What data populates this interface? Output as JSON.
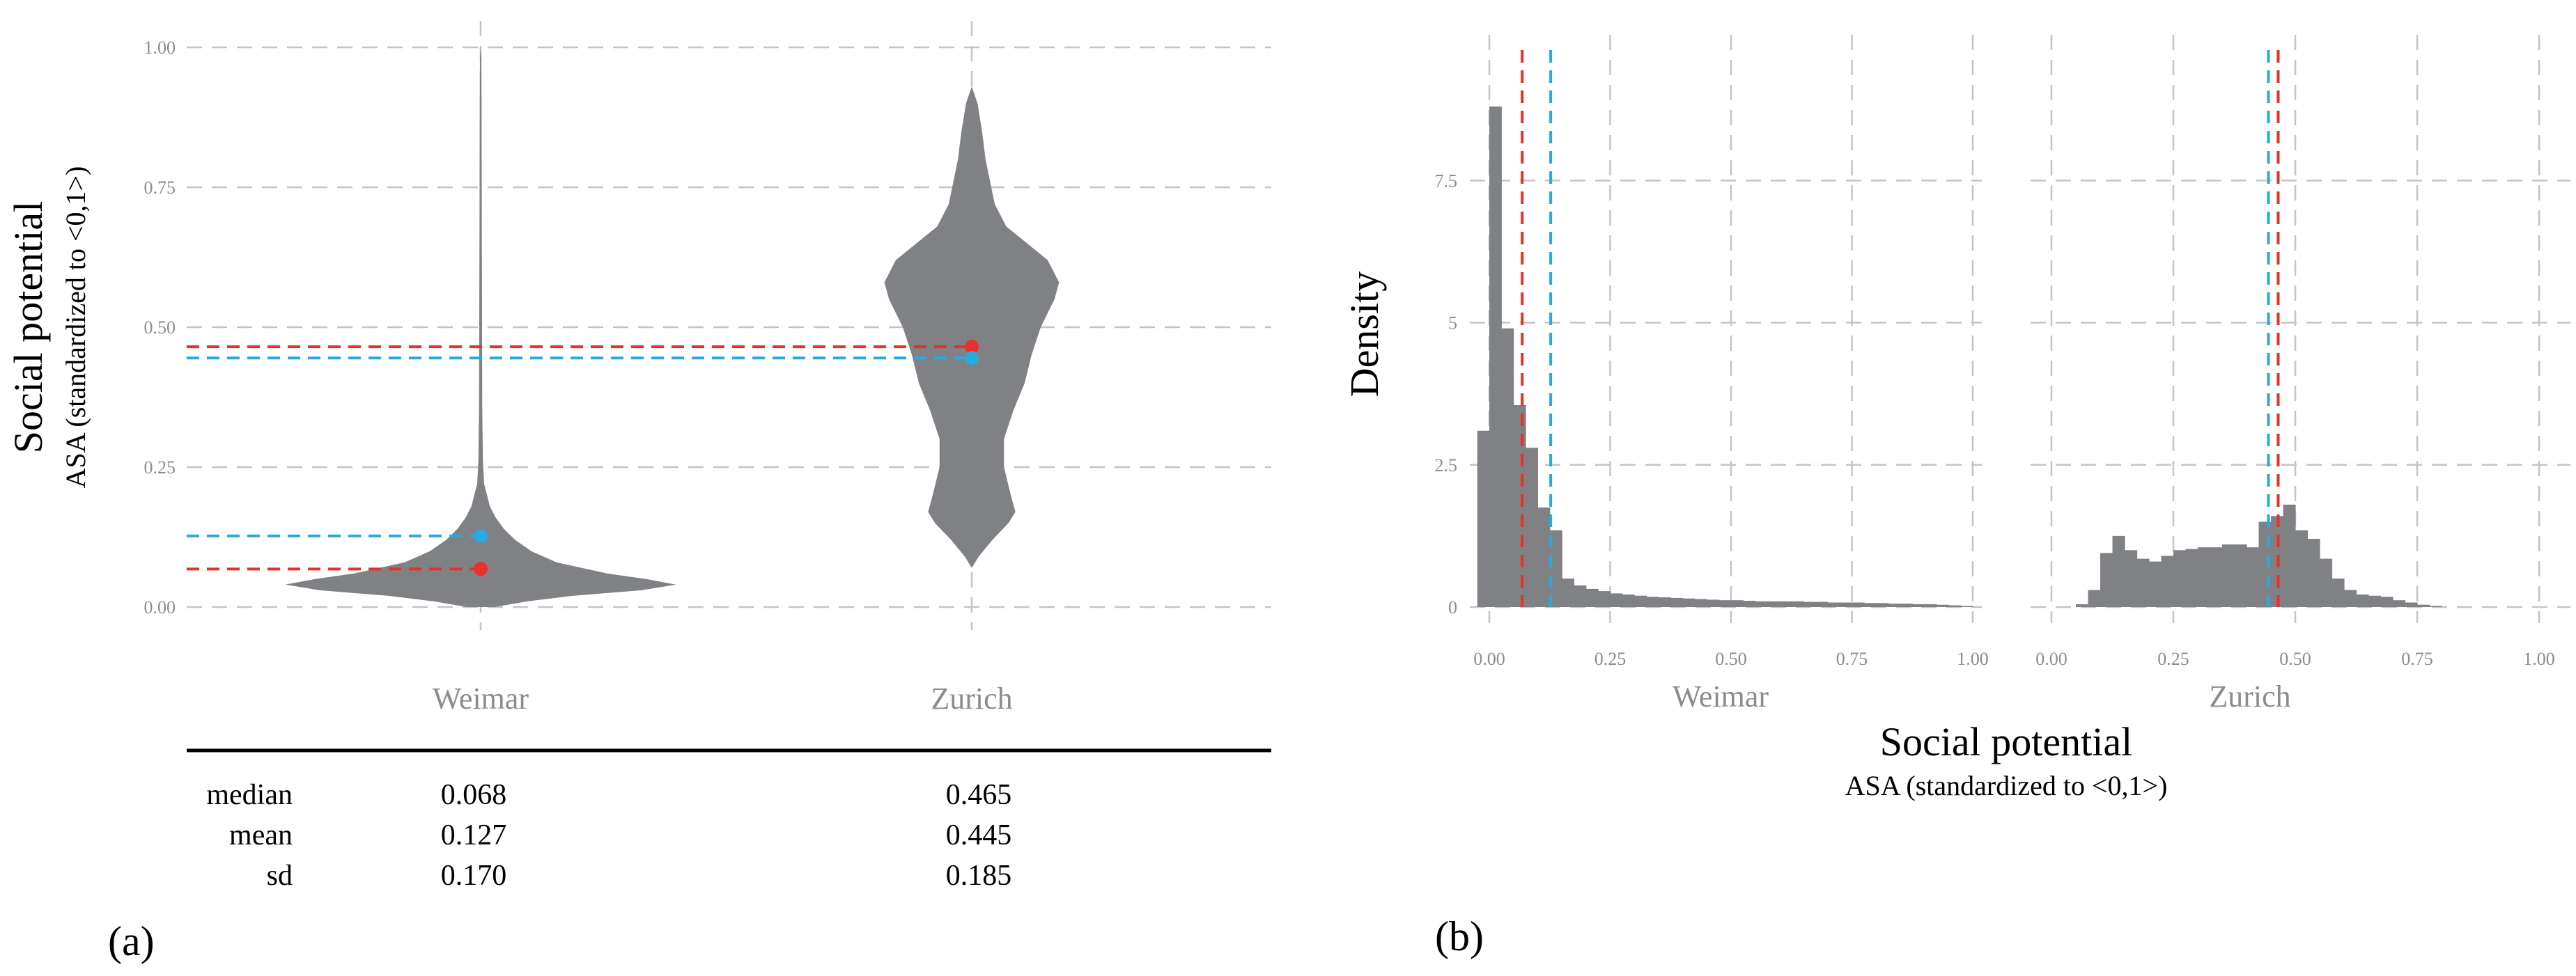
{
  "chart_data": [
    {
      "panel": "(a)",
      "type": "violin",
      "categories": [
        "Weimar",
        "Zurich"
      ],
      "ylabel": "Social potential",
      "ylabel_sub": "ASA (standardized to <0,1>)",
      "ylim": [
        0,
        1
      ],
      "yticks": [
        "0.00",
        "0.25",
        "0.50",
        "0.75",
        "1.00"
      ],
      "grid": true,
      "median_color": "#e8312a",
      "mean_color": "#29a9e0",
      "fill_color": "#808184",
      "violins": [
        {
          "name": "Weimar",
          "min": 0.0,
          "max": 1.0,
          "profile": [
            [
              0.0,
              0.06
            ],
            [
              0.01,
              0.2
            ],
            [
              0.02,
              0.4
            ],
            [
              0.03,
              0.7
            ],
            [
              0.04,
              0.85
            ],
            [
              0.05,
              0.72
            ],
            [
              0.06,
              0.55
            ],
            [
              0.08,
              0.33
            ],
            [
              0.1,
              0.22
            ],
            [
              0.12,
              0.15
            ],
            [
              0.14,
              0.1
            ],
            [
              0.16,
              0.065
            ],
            [
              0.18,
              0.04
            ],
            [
              0.2,
              0.028
            ],
            [
              0.22,
              0.015
            ],
            [
              0.26,
              0.01
            ],
            [
              0.35,
              0.007
            ],
            [
              0.5,
              0.006
            ],
            [
              0.7,
              0.005
            ],
            [
              0.9,
              0.004
            ],
            [
              0.98,
              0.003
            ],
            [
              1.0,
              0.0
            ]
          ],
          "median": 0.068,
          "mean": 0.127,
          "sd": 0.17
        },
        {
          "name": "Zurich",
          "min": 0.07,
          "max": 0.93,
          "profile": [
            [
              0.07,
              0.0
            ],
            [
              0.09,
              0.03
            ],
            [
              0.12,
              0.09
            ],
            [
              0.15,
              0.16
            ],
            [
              0.17,
              0.19
            ],
            [
              0.2,
              0.17
            ],
            [
              0.25,
              0.14
            ],
            [
              0.3,
              0.14
            ],
            [
              0.35,
              0.18
            ],
            [
              0.4,
              0.23
            ],
            [
              0.45,
              0.26
            ],
            [
              0.5,
              0.3
            ],
            [
              0.55,
              0.36
            ],
            [
              0.58,
              0.38
            ],
            [
              0.62,
              0.33
            ],
            [
              0.65,
              0.24
            ],
            [
              0.68,
              0.15
            ],
            [
              0.72,
              0.1
            ],
            [
              0.76,
              0.08
            ],
            [
              0.8,
              0.06
            ],
            [
              0.85,
              0.045
            ],
            [
              0.9,
              0.025
            ],
            [
              0.93,
              0.0
            ]
          ],
          "median": 0.465,
          "mean": 0.445,
          "sd": 0.185
        }
      ],
      "table": {
        "row_labels": [
          "median",
          "mean",
          "sd"
        ],
        "Weimar": [
          "0.068",
          "0.127",
          "0.170"
        ],
        "Zurich": [
          "0.465",
          "0.445",
          "0.185"
        ]
      }
    },
    {
      "panel": "(b)",
      "type": "histogram",
      "ylabel": "Density",
      "xlabel": "Social potential",
      "xlabel_sub": "ASA (standardized to <0,1>)",
      "xlim": [
        -0.05,
        1.0
      ],
      "ylim": [
        0,
        10
      ],
      "xticks": [
        "0.00",
        "0.25",
        "0.50",
        "0.75",
        "1.00"
      ],
      "yticks": [
        "0",
        "2.5",
        "5",
        "7.5"
      ],
      "bin_width": 0.025,
      "grid": true,
      "median_color": "#e8312a",
      "mean_color": "#29a9e0",
      "fill_color": "#808184",
      "facets": [
        {
          "name": "Weimar",
          "median": 0.068,
          "mean": 0.127,
          "bins_start": -0.025,
          "density": [
            3.1,
            8.8,
            4.9,
            3.55,
            2.8,
            1.75,
            1.35,
            0.5,
            0.38,
            0.32,
            0.28,
            0.24,
            0.22,
            0.2,
            0.18,
            0.17,
            0.16,
            0.15,
            0.14,
            0.13,
            0.12,
            0.12,
            0.11,
            0.1,
            0.1,
            0.1,
            0.1,
            0.09,
            0.09,
            0.08,
            0.08,
            0.08,
            0.07,
            0.07,
            0.06,
            0.06,
            0.05,
            0.05,
            0.04,
            0.03,
            0.02
          ]
        },
        {
          "name": "Zurich",
          "median": 0.465,
          "mean": 0.445,
          "bins_start": 0.05,
          "density": [
            0.05,
            0.3,
            0.95,
            1.25,
            1.0,
            0.85,
            0.8,
            0.9,
            1.0,
            1.02,
            1.05,
            1.05,
            1.1,
            1.1,
            1.05,
            1.5,
            1.6,
            1.8,
            1.35,
            1.2,
            0.85,
            0.5,
            0.3,
            0.22,
            0.2,
            0.18,
            0.12,
            0.08,
            0.04,
            0.02
          ]
        }
      ]
    }
  ]
}
